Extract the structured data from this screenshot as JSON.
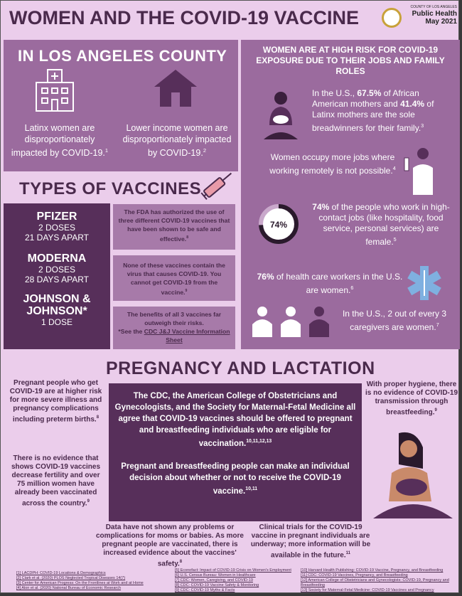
{
  "title": "WOMEN AND THE COVID-19 VACCINE",
  "logo": {
    "agency_small": "COUNTY OF LOS ANGELES",
    "agency": "Public Health",
    "date": "May 2021"
  },
  "la_county": {
    "heading": "IN LOS ANGELES COUNTY",
    "items": [
      {
        "icon": "hospital-icon",
        "text": "Latinx women are disproportionately impacted by COVID-19.",
        "ref": "1"
      },
      {
        "icon": "house-icon",
        "text": "Lower income women are disproportionately impacted by COVID-19.",
        "ref": "2"
      }
    ]
  },
  "vaccines": {
    "heading": "TYPES OF VACCINES",
    "list": [
      {
        "name": "PFIZER",
        "doses": "2 DOSES",
        "interval": "21 DAYS APART"
      },
      {
        "name": "MODERNA",
        "doses": "2 DOSES",
        "interval": "28 DAYS APART"
      },
      {
        "name": "JOHNSON & JOHNSON*",
        "doses": "1 DOSE"
      }
    ],
    "cards": [
      {
        "text": "The FDA has authorized the use of three different COVID-19 vaccines that have been shown to be safe and effective.",
        "ref": "8"
      },
      {
        "text": "None of these vaccines contain the virus that causes COVID-19. You cannot get COVID-19 from the vaccine.",
        "ref": "9"
      },
      {
        "text": "The benefits of all 3 vaccines far outweigh their risks.",
        "note": "*See the ",
        "link": "CDC J&J Vaccine Information Sheet"
      }
    ]
  },
  "risk": {
    "heading": "WOMEN ARE AT HIGH RISK FOR COVID-19 EXPOSURE DUE TO THEIR JOBS AND FAMILY ROLES",
    "stat1": {
      "pre": "In the U.S., ",
      "v1": "67.5%",
      "mid": " of African American mothers and ",
      "v2": "41.4%",
      "post": " of Latinx mothers are the sole breadwinners for their family.",
      "ref": "3"
    },
    "stat2": {
      "text": "Women occupy more jobs where working remotely is not possible.",
      "ref": "4"
    },
    "stat3": {
      "donut": "74%",
      "value": 74,
      "bold": "74%",
      "text": " of the people who work in high-contact jobs (like hospitality, food service, personal services) are female.",
      "ref": "5"
    },
    "stat4": {
      "bold": "76%",
      "text": " of health care workers in the U.S. are women.",
      "ref": "6"
    },
    "stat5": {
      "text": "In the U.S., 2 out of every 3 caregivers are women.",
      "ref": "7"
    }
  },
  "pregnancy": {
    "heading": "PREGNANCY AND LACTATION",
    "left1": {
      "text": "Pregnant people who get COVID-19 are at higher risk for more severe illness and pregnancy complications including preterm births.",
      "ref": "8"
    },
    "left2": {
      "text": "There is no evidence that shows COVID-19 vaccines decrease fertility and over 75 million women have already been vaccinated across the country.",
      "ref": "9"
    },
    "center1": {
      "text": "The CDC, the American College of Obstetricians and Gynecologists, and the Society for Maternal-Fetal Medicine all agree that COVID-19 vaccines should be offered to pregnant and breastfeeding individuals who are eligible for vaccination.",
      "ref": "10,11,12,13"
    },
    "center2": {
      "text": "Pregnant and breastfeeding people can make an individual decision about whether or not to receive the COVID-19 vaccine.",
      "ref": "10,11"
    },
    "right1": {
      "text": "With proper hygiene, there is no evidence of COVID-19 transmission through breastfeeding.",
      "ref": "9"
    },
    "bottom1": {
      "text": "Data have not shown any problems or complications for moms or babies. As more pregnant people are vaccinated, there is increased evidence about the vaccines' safety.",
      "ref": "8"
    },
    "bottom2": {
      "text": "Clinical trials for the COVID-19 vaccine in pregnant individuals are underway; more information will be available in the future.",
      "ref": "11"
    }
  },
  "references": [
    [
      "[1] LACDPH: COVID-19 Locations & Demographics",
      "[2] Clark et al. (2020) PLOS Neglected Tropical Diseases 14(7)",
      "[3] Center for American Progress: On the Frontlines at Work and at Home",
      "[4] Alon et al. (2020) National Bureau of Economic Research"
    ],
    [
      "[5] Econofact: Impact of COVID-19 Crisis on Women's Employment",
      "[6] U.S. Census Bureau: Women in Healthcare",
      "[7] CDC: Women, Caregiving, and COVID-19",
      "[8] CDC: COVID-19 Vaccine Safety & Monitoring",
      "[9] CDC: COVID-19 Myths & Facts"
    ],
    [
      "[10] Harvard Health Publishing: COVID-19 Vaccine, Pregnancy, and Breastfeeding",
      "[11] CDC: COVID-19 Vaccines, Pregnancy, and Breastfeeding",
      "[12] American College of Obstetricians and Gynecologists: COVID-19, Pregnancy and Breastfeeding",
      "[13] Society for Maternal-Fetal Medicine: COVID-19 Vaccines and Pregnancy"
    ]
  ],
  "colors": {
    "background": "#ebcdeb",
    "panel": "#9b6b9e",
    "dark": "#572f5a",
    "heading": "#4a2a4c"
  }
}
